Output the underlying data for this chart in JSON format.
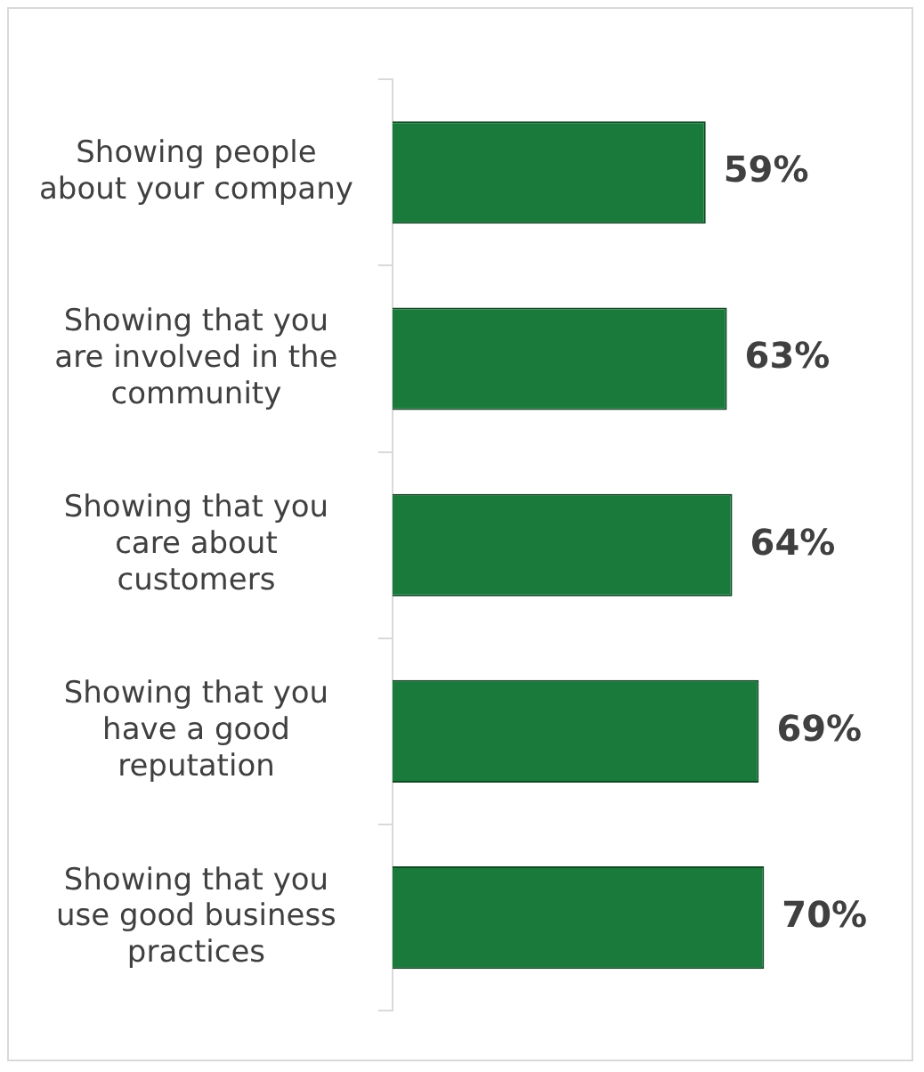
{
  "chart_data": {
    "type": "bar",
    "orientation": "horizontal",
    "categories": [
      "Showing people about your company",
      "Showing that you are involved in the community",
      "Showing that you care about customers",
      "Showing that you have a good reputation",
      "Showing that you use good business practices"
    ],
    "values": [
      59,
      63,
      64,
      69,
      70
    ],
    "color": "#1a7a3c",
    "value_labels": [
      "59%",
      "63%",
      "64%",
      "69%",
      "70%"
    ],
    "tick_labels": "y",
    "grid": false,
    "legend": false
  }
}
